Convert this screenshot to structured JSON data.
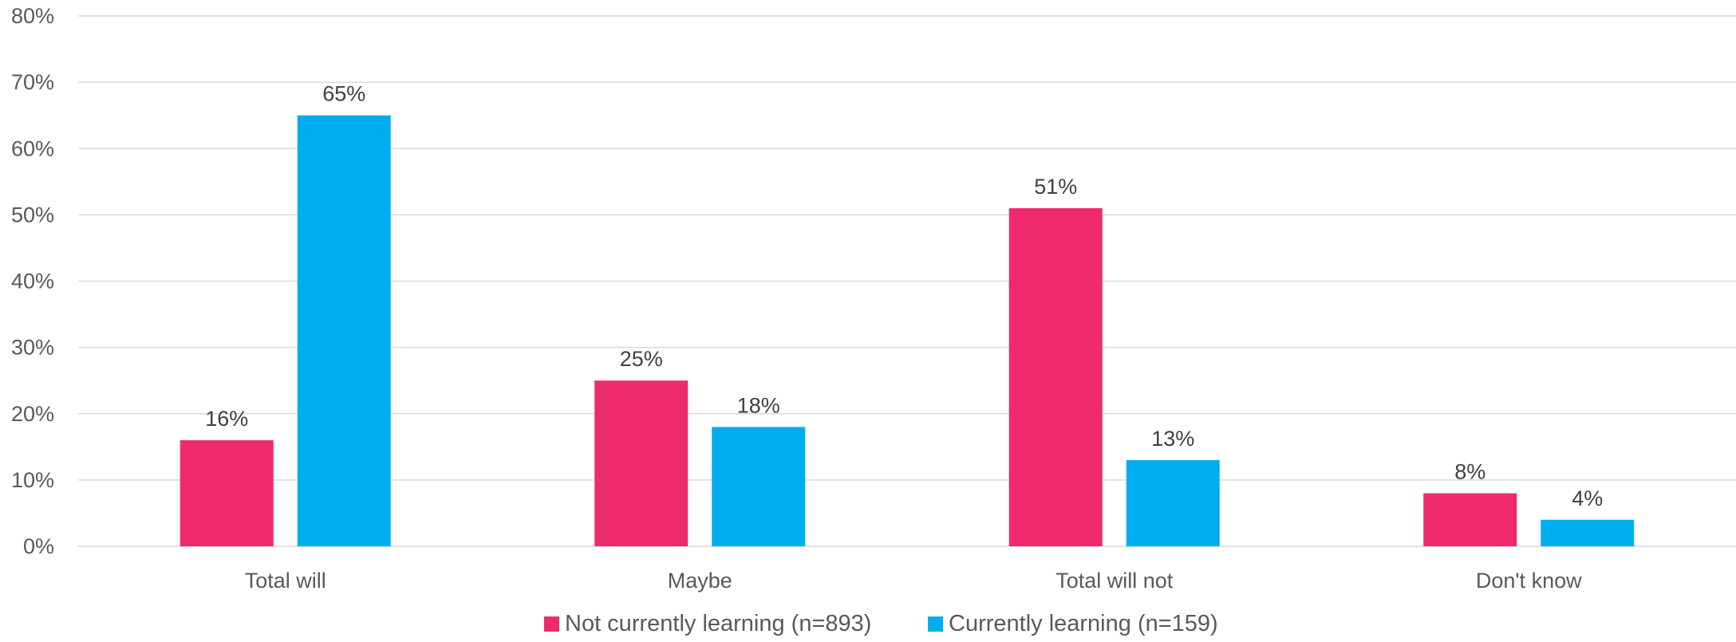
{
  "chart_data": {
    "type": "bar",
    "categories": [
      "Total will",
      "Maybe",
      "Total will not",
      "Don't know"
    ],
    "series": [
      {
        "name": "Not currently learning (n=893)",
        "color": "#EE2A6F",
        "values": [
          16,
          25,
          51,
          8
        ],
        "labels": [
          "16%",
          "25%",
          "51%",
          "8%"
        ]
      },
      {
        "name": "Currently learning (n=159)",
        "color": "#00AEEF",
        "values": [
          65,
          18,
          13,
          4
        ],
        "labels": [
          "65%",
          "18%",
          "13%",
          "4%"
        ]
      }
    ],
    "ylim": [
      0,
      80
    ],
    "yticks": [
      0,
      10,
      20,
      30,
      40,
      50,
      60,
      70,
      80
    ],
    "ytick_labels": [
      "0%",
      "10%",
      "20%",
      "30%",
      "40%",
      "50%",
      "60%",
      "70%",
      "80%"
    ],
    "grid": true,
    "legend_position": "bottom"
  }
}
